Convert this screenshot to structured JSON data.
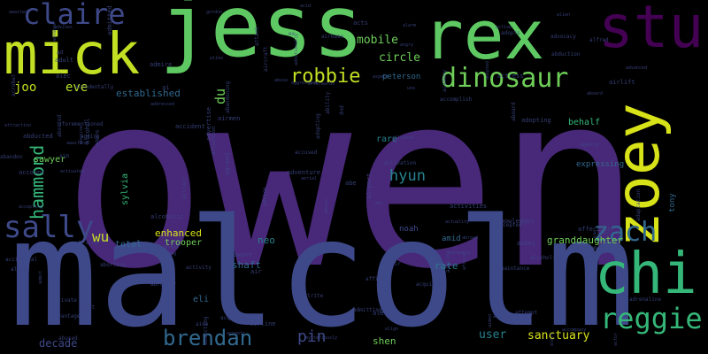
{
  "palette": {
    "purple": "#440154",
    "indigo": "#482878",
    "blue": "#3e4989",
    "slate": "#31688e",
    "teal": "#26828e",
    "green_teal": "#1f9e89",
    "green": "#35b779",
    "lime": "#6ece58",
    "yellow_green": "#b5de2b",
    "yellow": "#fde725"
  },
  "words": [
    {
      "text": "owen",
      "color": "#482878"
    },
    {
      "text": "malcolm",
      "color": "#3e4989"
    },
    {
      "text": "jess",
      "color": "#5ec962"
    },
    {
      "text": "rex",
      "color": "#5ec962"
    },
    {
      "text": "stu",
      "color": "#440154"
    },
    {
      "text": "mick",
      "color": "#c2df23"
    },
    {
      "text": "claire",
      "color": "#3e4989"
    },
    {
      "text": "zoey",
      "color": "#d8e219"
    },
    {
      "text": "chi",
      "color": "#35b779"
    },
    {
      "text": "sally",
      "color": "#3e4989"
    },
    {
      "text": "zach",
      "color": "#31688e"
    },
    {
      "text": "reggie",
      "color": "#35b779"
    },
    {
      "text": "dinosaur",
      "color": "#6ece58"
    },
    {
      "text": "robbie",
      "color": "#c2df23"
    },
    {
      "text": "brendan",
      "color": "#31688e"
    },
    {
      "text": "hammond",
      "color": "#35b779"
    },
    {
      "text": "hyun",
      "color": "#26828e"
    },
    {
      "text": "pin",
      "color": "#3e4989"
    },
    {
      "text": "wu",
      "color": "#c2df23"
    },
    {
      "text": "eve",
      "color": "#b5de2b"
    },
    {
      "text": "joo",
      "color": "#c2df23"
    },
    {
      "text": "mobile",
      "color": "#6ece58"
    },
    {
      "text": "circle",
      "color": "#6ece58"
    },
    {
      "text": "du",
      "color": "#6ece58"
    },
    {
      "text": "established",
      "color": "#31688e"
    },
    {
      "text": "sanctuary",
      "color": "#d8e219"
    },
    {
      "text": "granddaughter",
      "color": "#6ece58"
    },
    {
      "text": "user",
      "color": "#26828e"
    },
    {
      "text": "rate",
      "color": "#2a788e"
    },
    {
      "text": "shaft",
      "color": "#31688e"
    },
    {
      "text": "neo",
      "color": "#26828e"
    },
    {
      "text": "enhanced",
      "color": "#d8e219"
    },
    {
      "text": "trooper",
      "color": "#6ece58"
    },
    {
      "text": "total",
      "color": "#31688e"
    },
    {
      "text": "decade",
      "color": "#3e4989"
    },
    {
      "text": "sawyer",
      "color": "#6ece58"
    },
    {
      "text": "shen",
      "color": "#6ece58"
    },
    {
      "text": "eli",
      "color": "#31688e"
    },
    {
      "text": "rare",
      "color": "#26828e"
    },
    {
      "text": "peterson",
      "color": "#31688e"
    },
    {
      "text": "noah",
      "color": "#3e4989"
    },
    {
      "text": "sylvia",
      "color": "#35b779"
    },
    {
      "text": "tony",
      "color": "#31688e"
    },
    {
      "text": "behalf",
      "color": "#35b779"
    },
    {
      "text": "expressing",
      "color": "#31688e"
    },
    {
      "text": "amid",
      "color": "#31688e"
    },
    {
      "text": "accidentally",
      "color": "#3e4989"
    },
    {
      "text": "activate",
      "color": "#3e4989"
    },
    {
      "text": "activity",
      "color": "#3e4989"
    },
    {
      "text": "ability",
      "color": "#3e4989"
    },
    {
      "text": "airport",
      "color": "#3e4989"
    },
    {
      "text": "actor",
      "color": "#3e4989"
    },
    {
      "text": "advanced",
      "color": "#3e4989"
    },
    {
      "text": "accomplish",
      "color": "#3e4989"
    },
    {
      "text": "aggressive",
      "color": "#3e4989"
    },
    {
      "text": "abortion",
      "color": "#3e4989"
    },
    {
      "text": "advantage",
      "color": "#3e4989"
    },
    {
      "text": "afterwards",
      "color": "#3e4989"
    },
    {
      "text": "accepted",
      "color": "#3e4989"
    },
    {
      "text": "additionally",
      "color": "#3e4989"
    },
    {
      "text": "actuality",
      "color": "#3e4989"
    },
    {
      "text": "adventure",
      "color": "#3e4989"
    },
    {
      "text": "accused",
      "color": "#3e4989"
    },
    {
      "text": "adopted",
      "color": "#3e4989"
    },
    {
      "text": "accompany",
      "color": "#3e4989"
    },
    {
      "text": "acknowledges",
      "color": "#3e4989"
    },
    {
      "text": "afternoon",
      "color": "#3e4989"
    },
    {
      "text": "agreeing",
      "color": "#3e4989"
    },
    {
      "text": "attraction",
      "color": "#3e4989"
    },
    {
      "text": "abused",
      "color": "#3e4989"
    },
    {
      "text": "activation",
      "color": "#3e4989"
    },
    {
      "text": "aboard",
      "color": "#3e4989"
    },
    {
      "text": "african",
      "color": "#3e4989"
    },
    {
      "text": "abruptly",
      "color": "#3e4989"
    },
    {
      "text": "advance",
      "color": "#3e4989"
    },
    {
      "text": "abduction",
      "color": "#3e4989"
    },
    {
      "text": "attract",
      "color": "#3e4989"
    },
    {
      "text": "addressed",
      "color": "#3e4989"
    },
    {
      "text": "admitted",
      "color": "#3e4989"
    },
    {
      "text": "aircraft",
      "color": "#3e4989"
    },
    {
      "text": "accidental",
      "color": "#3e4989"
    },
    {
      "text": "acquires",
      "color": "#3e4989"
    },
    {
      "text": "accident",
      "color": "#3e4989"
    },
    {
      "text": "advises",
      "color": "#3e4989"
    },
    {
      "text": "accepting",
      "color": "#3e4989"
    },
    {
      "text": "admitting",
      "color": "#3e4989"
    },
    {
      "text": "agent",
      "color": "#3e4989"
    },
    {
      "text": "alley",
      "color": "#3e4989"
    },
    {
      "text": "agency",
      "color": "#3e4989"
    },
    {
      "text": "attempt",
      "color": "#3e4989"
    },
    {
      "text": "acquired",
      "color": "#3e4989"
    },
    {
      "text": "adaptation",
      "color": "#3e4989"
    },
    {
      "text": "acquaintance",
      "color": "#3e4989"
    },
    {
      "text": "agreement",
      "color": "#3e4989"
    },
    {
      "text": "mysteriously",
      "color": "#3e4989"
    },
    {
      "text": "academy",
      "color": "#3e4989"
    },
    {
      "text": "gordon",
      "color": "#3e4989"
    },
    {
      "text": "abducted",
      "color": "#3e4989"
    },
    {
      "text": "according",
      "color": "#3e4989"
    },
    {
      "text": "alliance",
      "color": "#3e4989"
    },
    {
      "text": "agreed",
      "color": "#3e4989"
    },
    {
      "text": "adult",
      "color": "#3e4989"
    },
    {
      "text": "advice",
      "color": "#3e4989"
    },
    {
      "text": "admit",
      "color": "#3e4989"
    },
    {
      "text": "alfred",
      "color": "#3e4989"
    },
    {
      "text": "attack",
      "color": "#3e4989"
    },
    {
      "text": "alien",
      "color": "#3e4989"
    },
    {
      "text": "abandoning",
      "color": "#3e4989"
    },
    {
      "text": "alcoholic",
      "color": "#3e4989"
    },
    {
      "text": "airline",
      "color": "#3e4989"
    },
    {
      "text": "alec",
      "color": "#3e4989"
    },
    {
      "text": "align",
      "color": "#3e4989"
    },
    {
      "text": "alike",
      "color": "#3e4989"
    },
    {
      "text": "abbey",
      "color": "#3e4989"
    },
    {
      "text": "alive",
      "color": "#3e4989"
    },
    {
      "text": "airmen",
      "color": "#3e4989"
    },
    {
      "text": "ageing",
      "color": "#3e4989"
    },
    {
      "text": "abe",
      "color": "#3e4989"
    },
    {
      "text": "ad",
      "color": "#3e4989"
    },
    {
      "text": "an",
      "color": "#3e4989"
    },
    {
      "text": "ex",
      "color": "#3e4989"
    },
    {
      "text": "ai",
      "color": "#3e4989"
    },
    {
      "text": "accepts",
      "color": "#3e4989"
    },
    {
      "text": "acts",
      "color": "#3e4989"
    },
    {
      "text": "adopting",
      "color": "#3e4989"
    },
    {
      "text": "aspect",
      "color": "#3e4989"
    },
    {
      "text": "airbase",
      "color": "#3e4989"
    },
    {
      "text": "acid",
      "color": "#3e4989"
    },
    {
      "text": "aborted",
      "color": "#3e4989"
    },
    {
      "text": "adrenaline",
      "color": "#3e4989"
    },
    {
      "text": "alert",
      "color": "#3e4989"
    },
    {
      "text": "alert",
      "color": "#3e4989"
    },
    {
      "text": "alarm",
      "color": "#3e4989"
    },
    {
      "text": "aide",
      "color": "#3e4989"
    },
    {
      "text": "airtime",
      "color": "#3e4989"
    },
    {
      "text": "abusive",
      "color": "#3e4989"
    },
    {
      "text": "ambush",
      "color": "#3e4989"
    },
    {
      "text": "aforementioned",
      "color": "#3e4989"
    },
    {
      "text": "adding",
      "color": "#3e4989"
    },
    {
      "text": "awaiting",
      "color": "#3e4989"
    },
    {
      "text": "aerial",
      "color": "#3e4989"
    },
    {
      "text": "aware",
      "color": "#3e4989"
    },
    {
      "text": "aboard",
      "color": "#3e4989"
    },
    {
      "text": "attrite",
      "color": "#3e4989"
    },
    {
      "text": "abuse",
      "color": "#3e4989"
    },
    {
      "text": "access",
      "color": "#3e4989"
    },
    {
      "text": "active",
      "color": "#3e4989"
    },
    {
      "text": "abandon",
      "color": "#3e4989"
    },
    {
      "text": "account",
      "color": "#3e4989"
    },
    {
      "text": "aliens",
      "color": "#3e4989"
    },
    {
      "text": "adopts",
      "color": "#3e4989"
    },
    {
      "text": "airlift",
      "color": "#3e4989"
    },
    {
      "text": "aid",
      "color": "#3e4989"
    },
    {
      "text": "air",
      "color": "#3e4989"
    },
    {
      "text": "abe",
      "color": "#3e4989"
    },
    {
      "text": "aim",
      "color": "#3e4989"
    },
    {
      "text": "dnd",
      "color": "#3e4989"
    },
    {
      "text": "uno",
      "color": "#3e4989"
    },
    {
      "text": "arrested",
      "color": "#3e4989"
    },
    {
      "text": "advocacy",
      "color": "#3e4989"
    },
    {
      "text": "aimed",
      "color": "#3e4989"
    },
    {
      "text": "acrobat",
      "color": "#3e4989"
    },
    {
      "text": "awaited",
      "color": "#3e4989"
    },
    {
      "text": "angry",
      "color": "#3e4989"
    },
    {
      "text": "activated",
      "color": "#3e4989"
    },
    {
      "text": "abroad",
      "color": "#3e4989"
    },
    {
      "text": "affection",
      "color": "#3e4989"
    },
    {
      "text": "alcohol",
      "color": "#3e4989"
    },
    {
      "text": "affair",
      "color": "#3e4989"
    },
    {
      "text": "admire",
      "color": "#3e4989"
    },
    {
      "text": "adopting",
      "color": "#3e4989"
    },
    {
      "text": "abducting",
      "color": "#3e4989"
    },
    {
      "text": "advertise",
      "color": "#3e4989"
    },
    {
      "text": "actress",
      "color": "#3e4989"
    },
    {
      "text": "affirm",
      "color": "#3e4989"
    },
    {
      "text": "alcoholism",
      "color": "#3e4989"
    },
    {
      "text": "activities",
      "color": "#3e4989"
    }
  ]
}
